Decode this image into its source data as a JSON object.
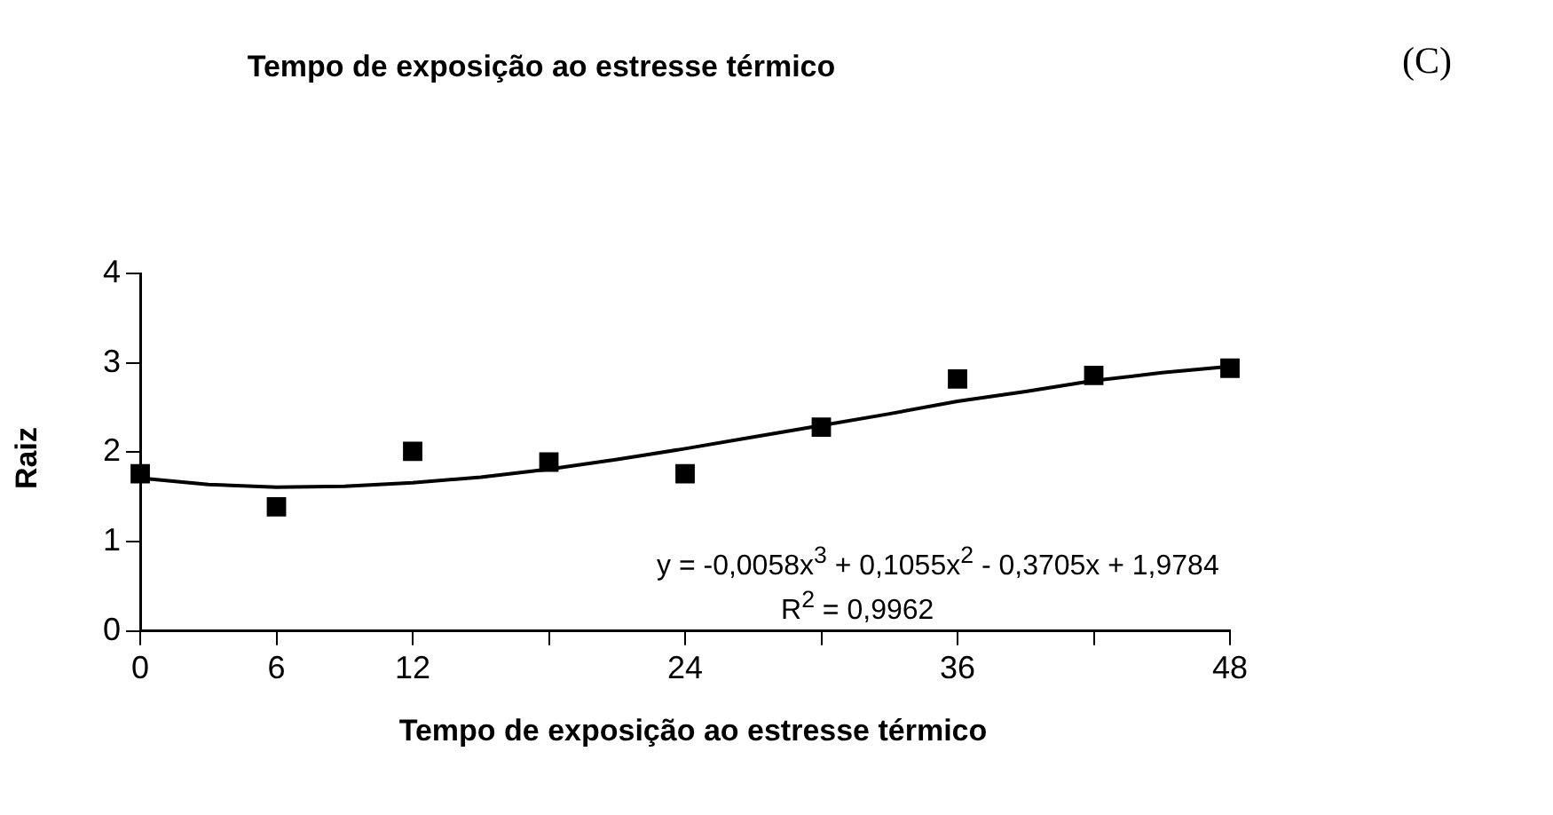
{
  "chart_data": {
    "type": "scatter",
    "title": "Tempo de exposição ao estresse térmico",
    "xlabel": "Tempo de exposição ao estresse térmico",
    "ylabel": "Raiz",
    "annotations": [
      "(C)",
      "y = -0,0058x$^{3}$ + 0,1055x$^{2}$ - 0,3705x + 1,9784",
      "R$^{2}$ = 0,9962"
    ],
    "x": [
      0,
      6,
      12,
      18,
      24,
      30,
      36,
      42,
      48
    ],
    "series": [
      {
        "type": "scatter",
        "color": "#000000",
        "values": [
          1.76,
          1.39,
          2.01,
          1.89,
          1.76,
          2.28,
          2.82,
          2.86,
          2.94
        ]
      },
      {
        "type": "line",
        "color": "#000000",
        "marker": "none",
        "x": [
          0,
          3,
          6,
          9,
          12,
          15,
          18,
          21,
          24,
          27,
          30,
          33,
          36,
          39,
          42,
          45,
          48
        ],
        "values": [
          1.71,
          1.64,
          1.61,
          1.62,
          1.66,
          1.72,
          1.81,
          1.92,
          2.04,
          2.17,
          2.3,
          2.43,
          2.57,
          2.68,
          2.8,
          2.89,
          2.96
        ]
      }
    ],
    "marker": "square",
    "xlim": [
      0,
      48
    ],
    "xticks": [
      0,
      6,
      12,
      {
        "value": 18,
        "label": null
      },
      24,
      {
        "value": 30,
        "label": null
      },
      36,
      {
        "value": 42,
        "label": null
      },
      48
    ],
    "ylim": [
      0,
      4
    ],
    "yticks": [
      0,
      1,
      2,
      3,
      4
    ]
  }
}
